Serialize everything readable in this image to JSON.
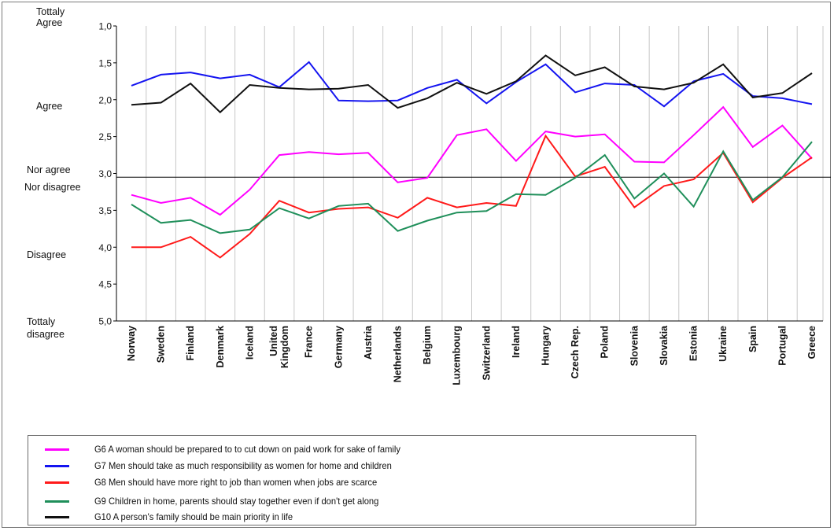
{
  "chart_data": {
    "type": "line",
    "ylim": [
      1.0,
      5.0
    ],
    "y_reversed": true,
    "y_ticks": [
      "1,0",
      "1,5",
      "2,0",
      "2,5",
      "3,0",
      "3,5",
      "4,0",
      "4,5",
      "5,0"
    ],
    "y_category_labels": [
      {
        "label": "Tottaly Agree",
        "value": 1.0
      },
      {
        "label": "Agree",
        "value": 2.0
      },
      {
        "label": "Nor agree Nor disagree",
        "value": 3.0
      },
      {
        "label": "Disagree",
        "value": 4.0
      },
      {
        "label": "Tottaly disagree",
        "value": 5.0
      }
    ],
    "reference_line": 3.05,
    "vertical_gridlines": true,
    "categories": [
      "Norway",
      "Sweden",
      "Finland",
      "Denmark",
      "Iceland",
      "United Kingdom",
      "France",
      "Germany",
      "Austria",
      "Netherlands",
      "Belgium",
      "Luxembourg",
      "Switzerland",
      "Ireland",
      "Hungary",
      "Czech Rep.",
      "Poland",
      "Slovenia",
      "Slovakia",
      "Estonia",
      "Ukraine",
      "Spain",
      "Portugal",
      "Greece"
    ],
    "series": [
      {
        "name": "G6  A woman should be prepared to to cut down on paid work for sake of family",
        "color": "#ff00ff",
        "values": [
          3.29,
          3.4,
          3.33,
          3.56,
          3.22,
          2.75,
          2.71,
          2.74,
          2.72,
          3.12,
          3.06,
          2.48,
          2.4,
          2.83,
          2.43,
          2.5,
          2.47,
          2.84,
          2.85,
          2.48,
          2.1,
          2.64,
          2.35,
          2.8
        ]
      },
      {
        "name": "G7  Men should take as much responsibility as women for home and children",
        "color": "#1414f0",
        "values": [
          1.81,
          1.66,
          1.63,
          1.71,
          1.66,
          1.83,
          1.49,
          2.01,
          2.02,
          2.01,
          1.84,
          1.73,
          2.05,
          1.76,
          1.52,
          1.9,
          1.78,
          1.8,
          2.09,
          1.75,
          1.65,
          1.95,
          1.98,
          2.06
        ]
      },
      {
        "name": "G8 Men should have more right to job than women when jobs are scarce",
        "color": "#ff1a1a",
        "values": [
          4.0,
          4.0,
          3.86,
          4.14,
          3.82,
          3.37,
          3.53,
          3.48,
          3.46,
          3.6,
          3.33,
          3.46,
          3.4,
          3.44,
          2.49,
          3.04,
          2.91,
          3.46,
          3.17,
          3.08,
          2.72,
          3.39,
          3.06,
          2.78
        ]
      },
      {
        "name": "G9  Children in home, parents should stay together even if don't get along",
        "color": "#1f8f5a",
        "values": [
          3.42,
          3.67,
          3.63,
          3.81,
          3.76,
          3.47,
          3.61,
          3.44,
          3.41,
          3.78,
          3.64,
          3.53,
          3.51,
          3.28,
          3.29,
          3.06,
          2.75,
          3.34,
          3.0,
          3.45,
          2.7,
          3.36,
          3.05,
          2.57
        ]
      },
      {
        "name": "G10  A person's family should be main priority in life",
        "color": "#111111",
        "values": [
          2.07,
          2.04,
          1.78,
          2.17,
          1.8,
          1.84,
          1.86,
          1.85,
          1.8,
          2.11,
          1.98,
          1.77,
          1.92,
          1.75,
          1.4,
          1.67,
          1.56,
          1.82,
          1.86,
          1.77,
          1.52,
          1.97,
          1.91,
          1.64
        ]
      }
    ]
  }
}
